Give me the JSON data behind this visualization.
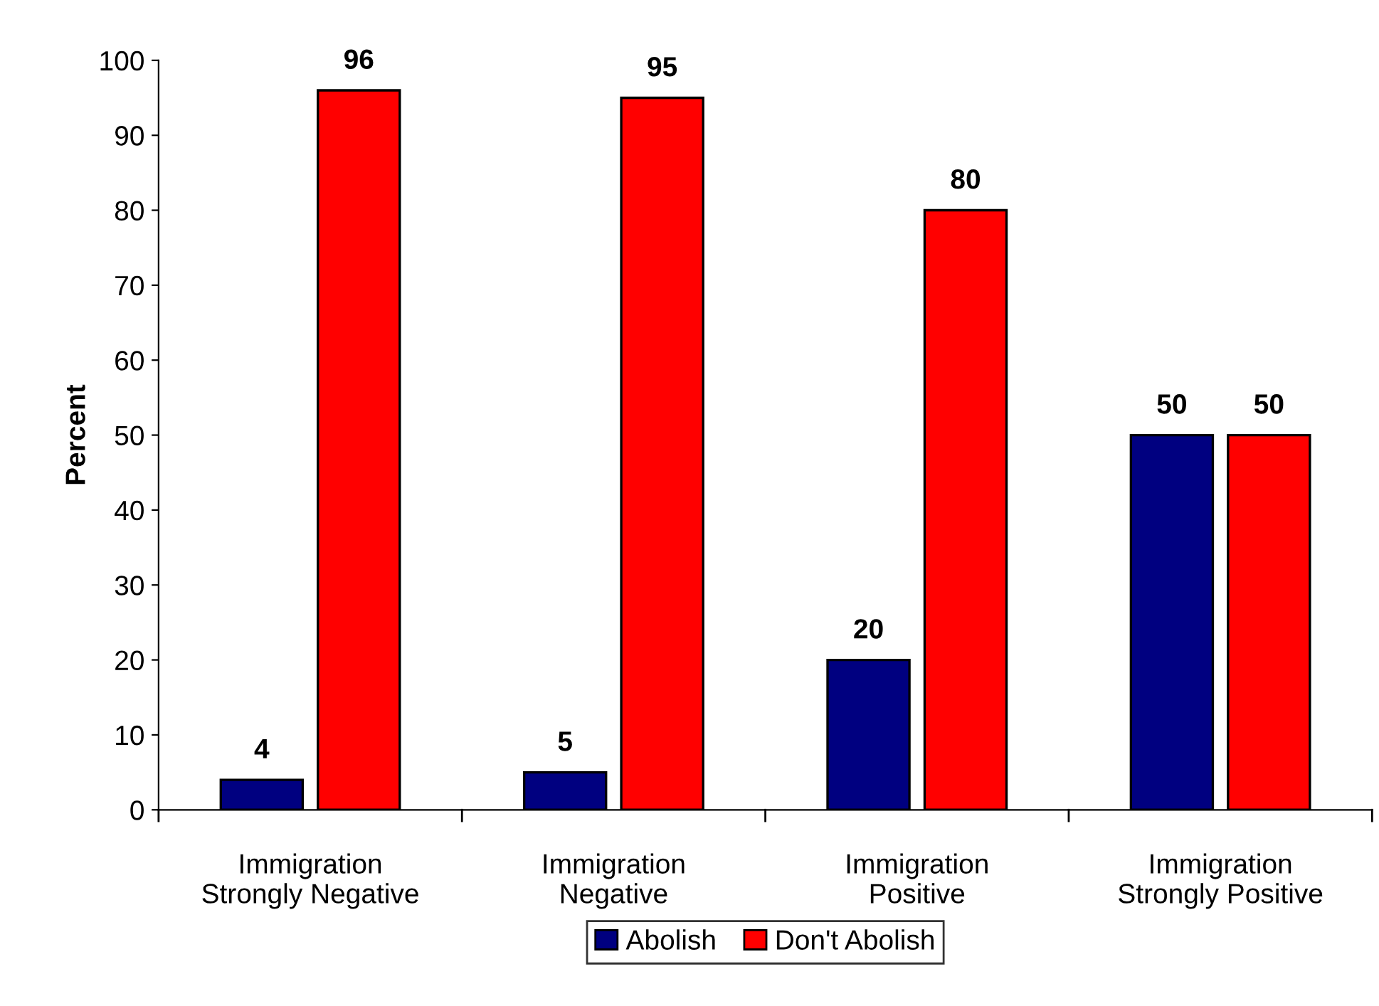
{
  "chart_data": {
    "type": "bar",
    "ylabel": "Percent",
    "categories": [
      "Immigration\nStrongly Negative",
      "Immigration\nNegative",
      "Immigration\nPositive",
      "Immigration\nStrongly Positive"
    ],
    "series": [
      {
        "name": "Abolish",
        "color": "#000080",
        "values": [
          4,
          5,
          20,
          50
        ]
      },
      {
        "name": "Don't Abolish",
        "color": "#ff0000",
        "values": [
          96,
          95,
          80,
          50
        ]
      }
    ],
    "ylim": [
      0,
      100
    ],
    "yticks": [
      0,
      10,
      20,
      30,
      40,
      50,
      60,
      70,
      80,
      90,
      100
    ],
    "data_labels": true,
    "grid": false,
    "legend": "bottom"
  }
}
